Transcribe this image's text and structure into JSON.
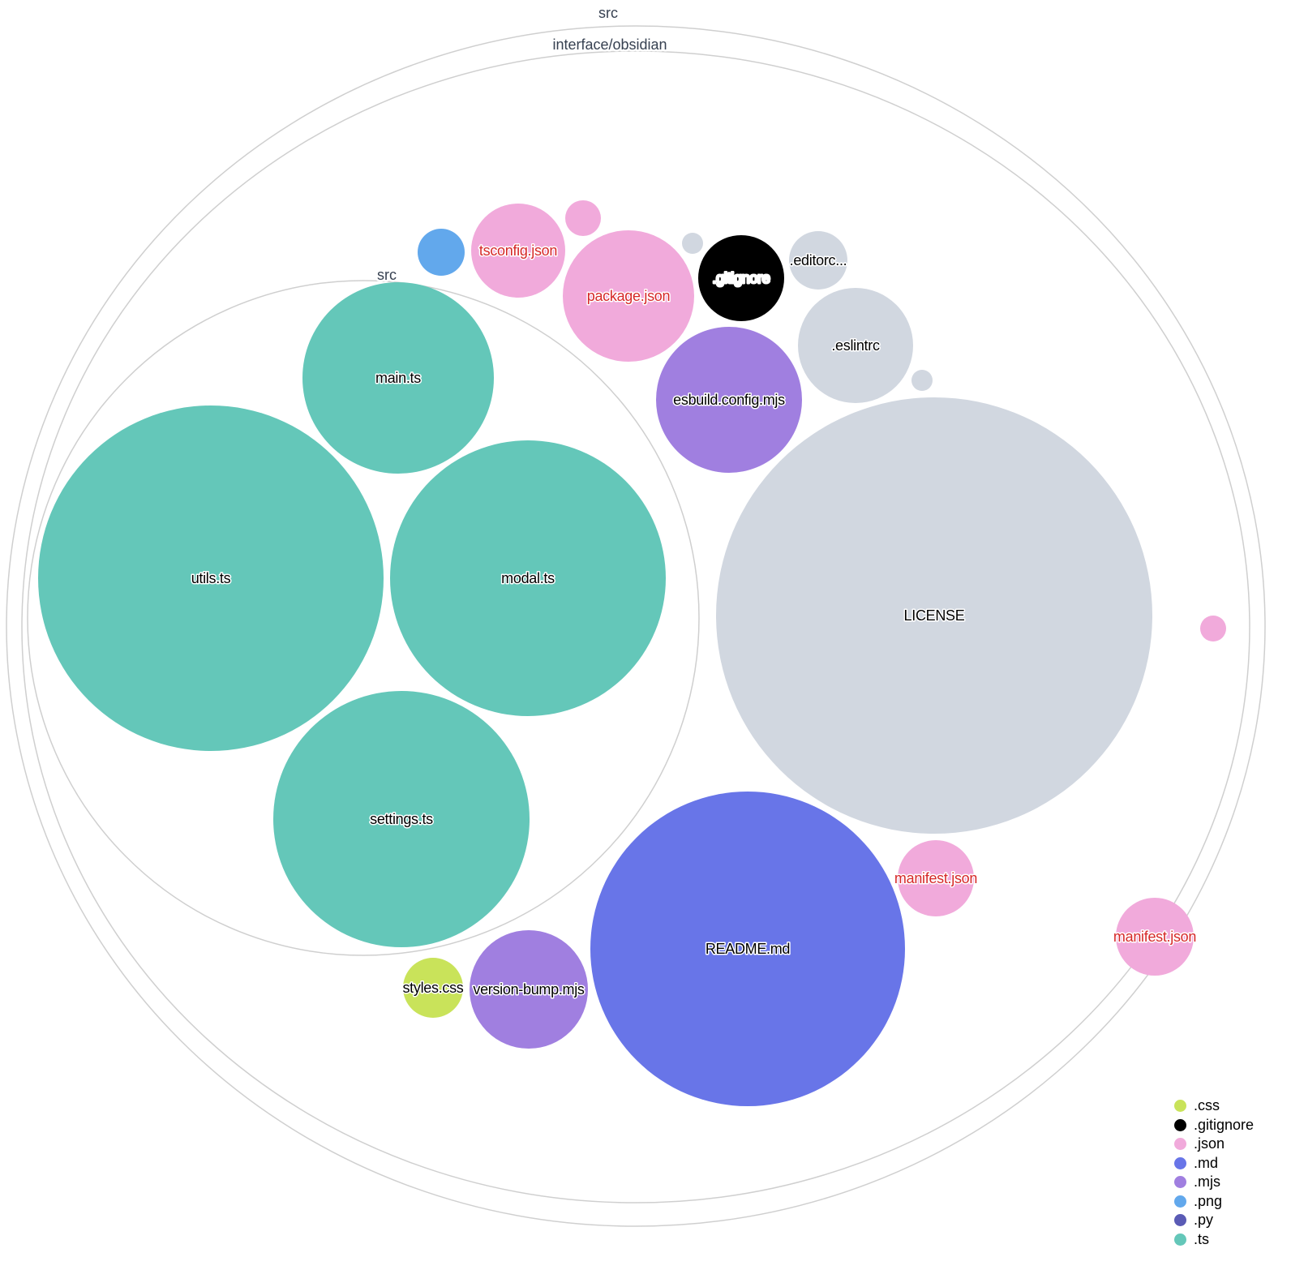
{
  "directories": [
    {
      "label": "src"
    },
    {
      "label": "interface/obsidian"
    },
    {
      "label": "src"
    }
  ],
  "colors": {
    ".css": "#c9e35a",
    ".gitignore": "#000000",
    ".json": "#f1aadb",
    ".md": "#6875e8",
    ".mjs": "#a07fe0",
    ".png": "#62a8ec",
    ".py": "#5a5bb5",
    ".ts": "#64c7b9",
    "other": "#d1d7e0"
  },
  "files": [
    {
      "label": "main.ts",
      "ext": ".ts"
    },
    {
      "label": "utils.ts",
      "ext": ".ts"
    },
    {
      "label": "modal.ts",
      "ext": ".ts"
    },
    {
      "label": "settings.ts",
      "ext": ".ts"
    },
    {
      "label": "LICENSE",
      "ext": "other"
    },
    {
      "label": "README.md",
      "ext": ".md"
    },
    {
      "label": "esbuild.config.mjs",
      "ext": ".mjs"
    },
    {
      "label": ".eslintrc",
      "ext": "other"
    },
    {
      "label": "",
      "ext": "other"
    },
    {
      "label": ".editorc...",
      "ext": "other"
    },
    {
      "label": ".gitignore",
      "ext": ".gitignore"
    },
    {
      "label": "",
      "ext": "other"
    },
    {
      "label": "package.json",
      "ext": ".json"
    },
    {
      "label": "",
      "ext": ".json"
    },
    {
      "label": "tsconfig.json",
      "ext": ".json"
    },
    {
      "label": "",
      "ext": ".png"
    },
    {
      "label": "manifest.json",
      "ext": ".json"
    },
    {
      "label": "manifest.json",
      "ext": ".json"
    },
    {
      "label": "",
      "ext": ".json"
    },
    {
      "label": "styles.css",
      "ext": ".css"
    },
    {
      "label": "version-bump.mjs",
      "ext": ".mjs"
    }
  ],
  "legend": [
    {
      "label": ".css",
      "color": "#c9e35a"
    },
    {
      "label": ".gitignore",
      "color": "#000000"
    },
    {
      "label": ".json",
      "color": "#f1aadb"
    },
    {
      "label": ".md",
      "color": "#6875e8"
    },
    {
      "label": ".mjs",
      "color": "#a07fe0"
    },
    {
      "label": ".png",
      "color": "#62a8ec"
    },
    {
      "label": ".py",
      "color": "#5a5bb5"
    },
    {
      "label": ".ts",
      "color": "#64c7b9"
    }
  ]
}
